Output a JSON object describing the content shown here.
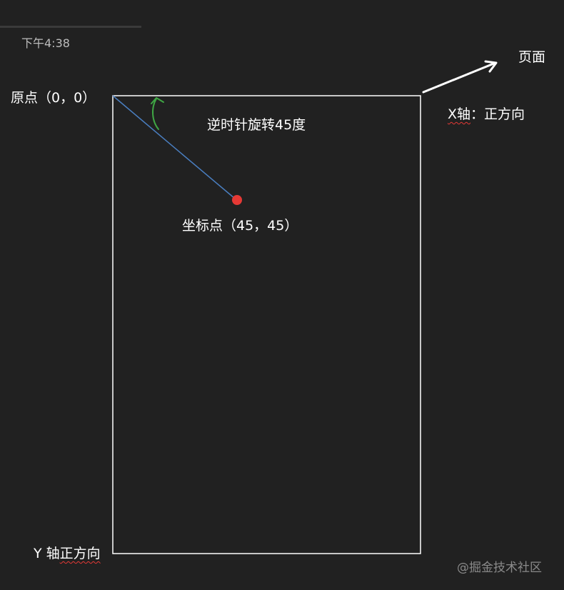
{
  "status": {
    "time": "下午4:38"
  },
  "labels": {
    "origin": "原点（0，0）",
    "rotation": "逆时针旋转45度",
    "point": "坐标点（45，45）",
    "page": "页面",
    "x_axis_prefix": "X轴",
    "x_axis_suffix": "：正方向",
    "y_axis_prefix": "Y 轴",
    "y_axis_suffix": "正方向"
  },
  "watermark": "@掘金技术社区",
  "colors": {
    "background": "#212121",
    "page_border": "#ffffff",
    "rotation_line": "#4a7fc1",
    "rotation_arrow": "#3fa544",
    "point_marker": "#e53935",
    "squiggle": "#e53935"
  },
  "icons": {
    "page_pointer": "arrow-icon",
    "rotation": "curved-arrow-icon",
    "point": "dot-icon"
  }
}
